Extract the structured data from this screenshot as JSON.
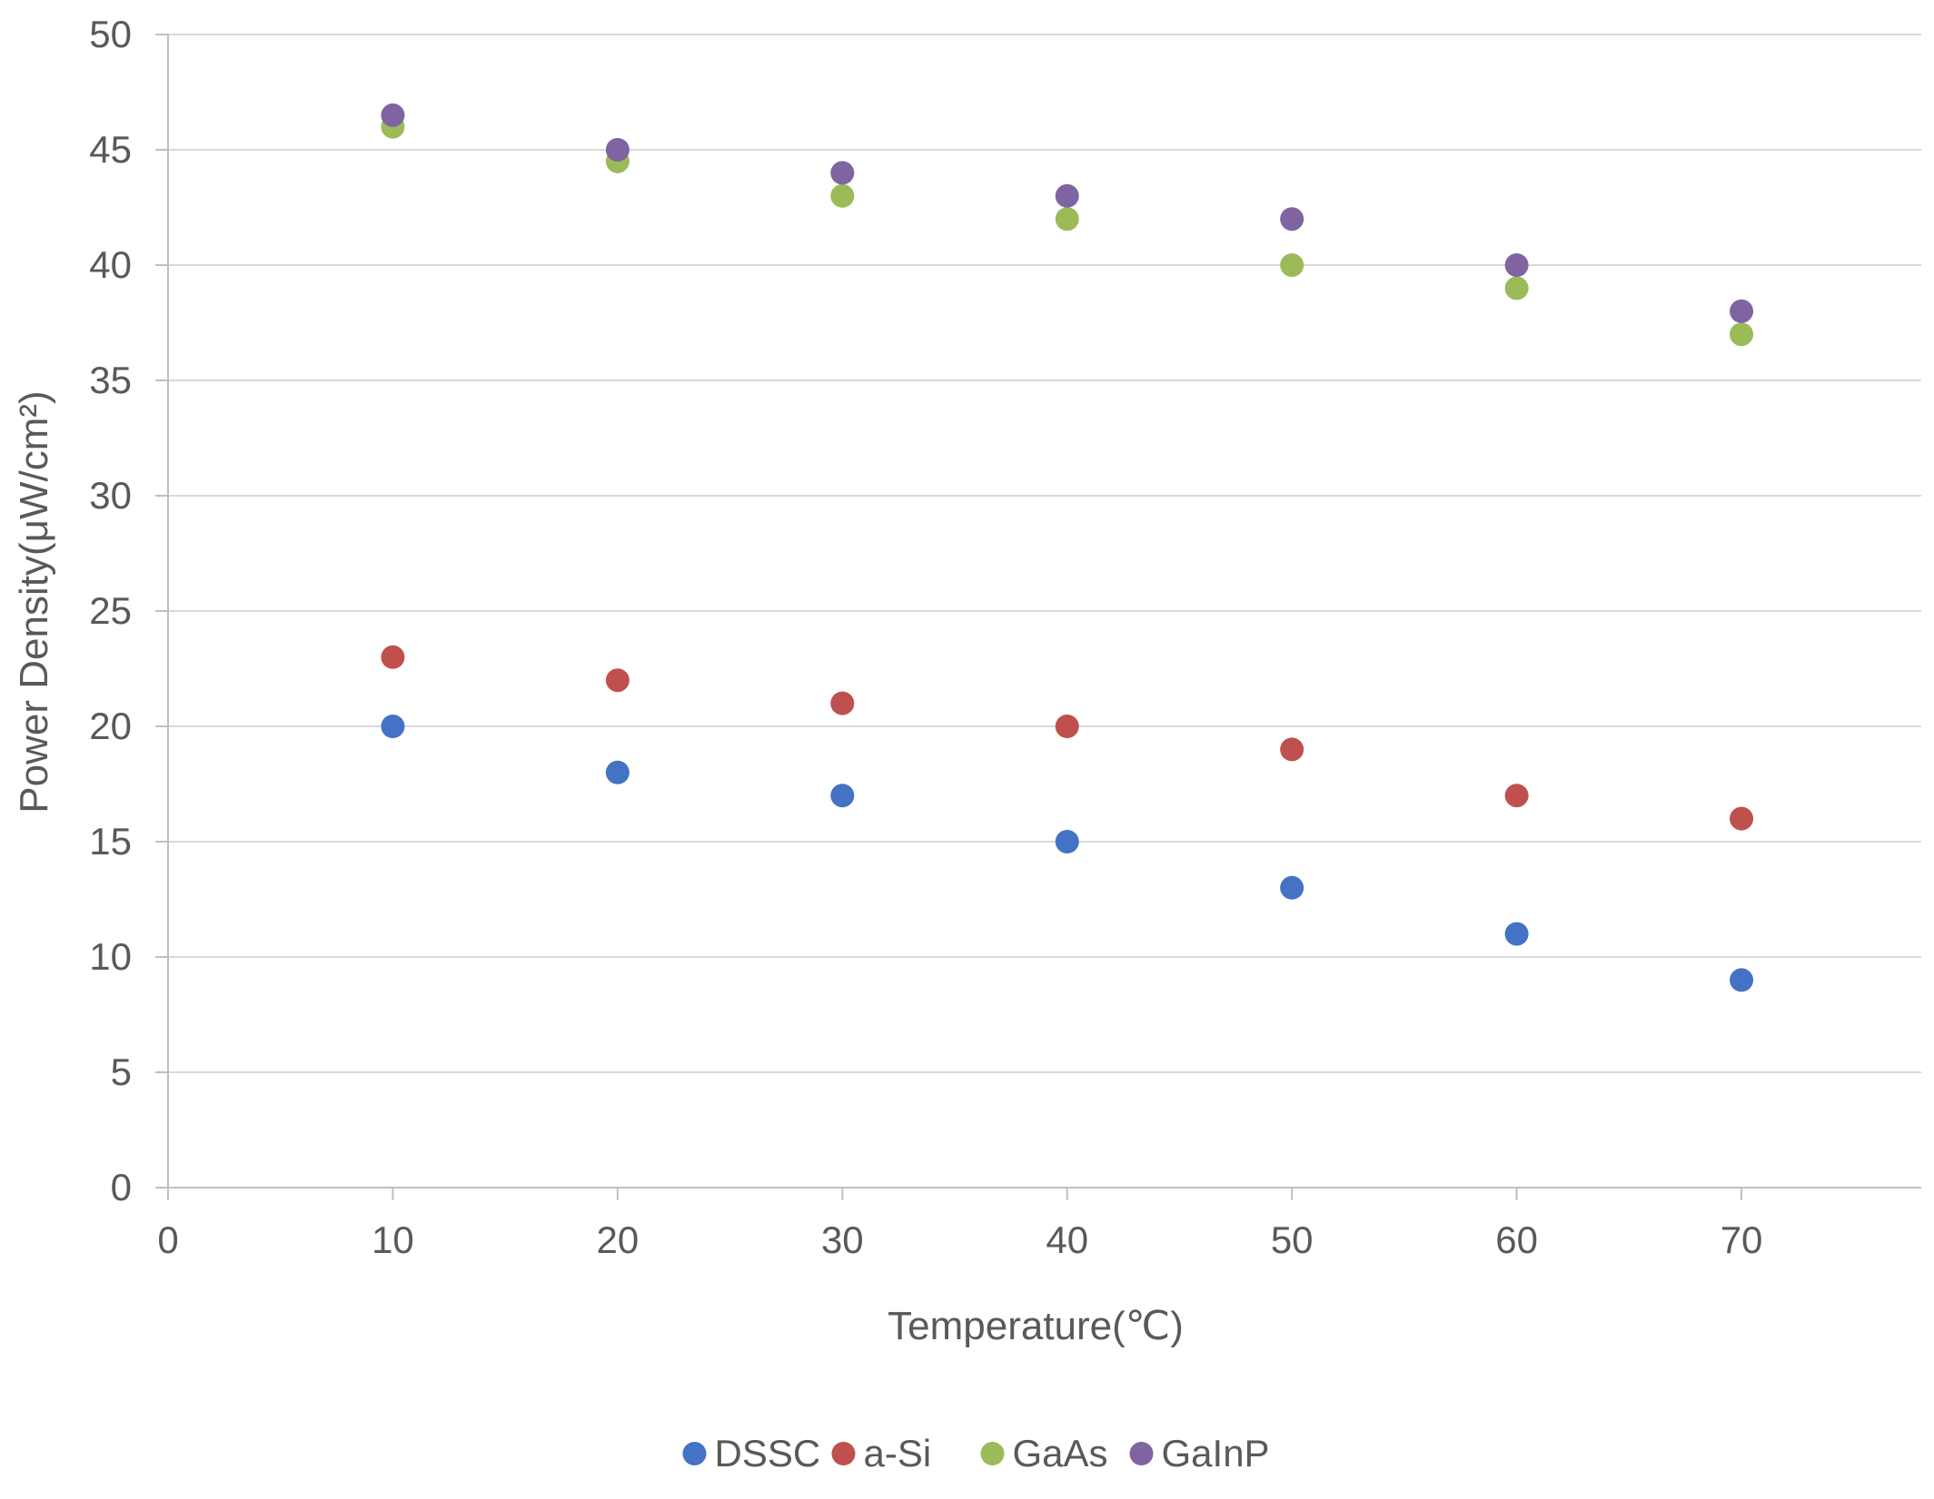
{
  "chart_data": {
    "type": "scatter",
    "title": "",
    "xlabel": "Temperature(℃)",
    "ylabel": "Power Density(μW/cm²)",
    "xlim": [
      0,
      78
    ],
    "ylim": [
      0,
      50
    ],
    "xticks": [
      0,
      10,
      20,
      30,
      40,
      50,
      60,
      70
    ],
    "yticks": [
      0,
      5,
      10,
      15,
      20,
      25,
      30,
      35,
      40,
      45,
      50
    ],
    "grid": "horizontal",
    "legend_position": "bottom",
    "x": [
      10,
      20,
      30,
      40,
      50,
      60,
      70
    ],
    "series": [
      {
        "name": "DSSC",
        "color": "#4472c4",
        "values": [
          20,
          18,
          17,
          15,
          13,
          11,
          9
        ]
      },
      {
        "name": "a-Si",
        "color": "#c0504d",
        "values": [
          23,
          22,
          21,
          20,
          19,
          17,
          16
        ]
      },
      {
        "name": "GaAs",
        "color": "#9bbb59",
        "values": [
          46,
          44.5,
          43,
          42,
          40,
          39,
          37
        ]
      },
      {
        "name": "GaInP",
        "color": "#8064a2",
        "values": [
          46.5,
          45,
          44,
          43,
          42,
          40,
          38
        ]
      }
    ]
  }
}
